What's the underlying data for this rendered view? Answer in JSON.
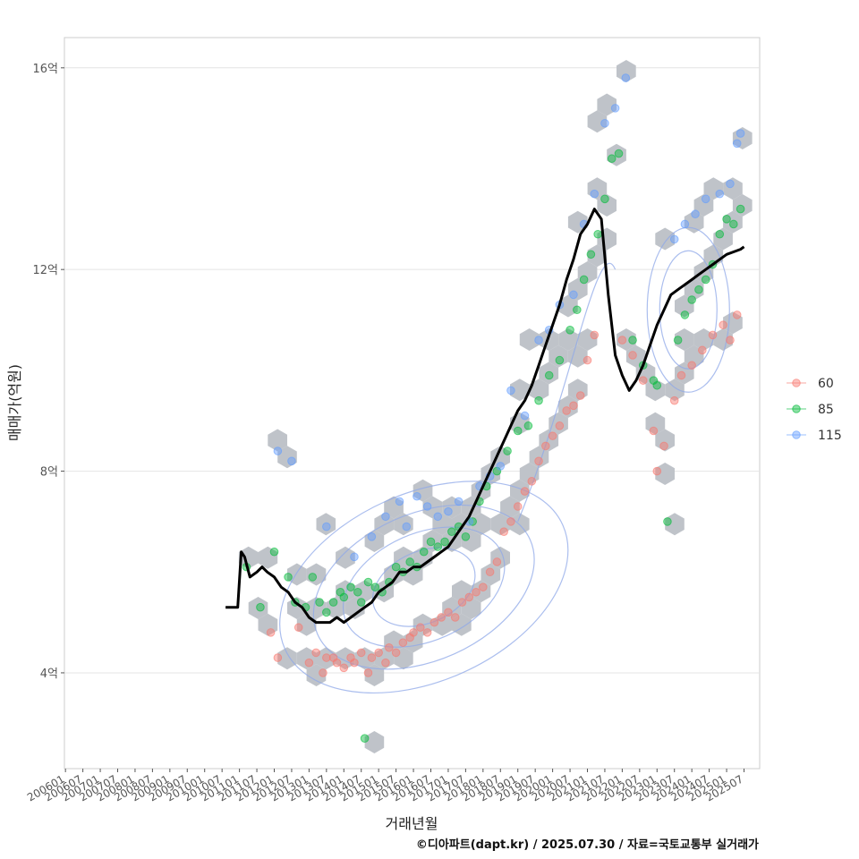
{
  "chart_data": {
    "type": "scatter",
    "title": "",
    "xlabel": "거래년월",
    "ylabel": "매매가(억원)",
    "caption": "©디아파트(dapt.kr) / 2025.07.30 / 자료=국토교통부 실거래가",
    "x_ticks": [
      "200601",
      "200607",
      "200701",
      "200707",
      "200801",
      "200807",
      "200901",
      "200907",
      "201001",
      "201007",
      "201101",
      "201107",
      "201201",
      "201207",
      "201301",
      "201307",
      "201401",
      "201407",
      "201501",
      "201507",
      "201601",
      "201607",
      "201701",
      "201707",
      "201801",
      "201807",
      "201901",
      "201907",
      "202001",
      "202007",
      "202101",
      "202107",
      "202201",
      "202207",
      "202301",
      "202307",
      "202401",
      "202407",
      "202501",
      "202507"
    ],
    "y_ticks": [
      {
        "value": 4,
        "label": "4억"
      },
      {
        "value": 8,
        "label": "8억"
      },
      {
        "value": 12,
        "label": "12억"
      },
      {
        "value": 16,
        "label": "16억"
      }
    ],
    "ylim": [
      2.1,
      16.6
    ],
    "xlim": [
      2005.97,
      2025.95
    ],
    "legend": {
      "placement": "right",
      "entries": [
        {
          "label": "60",
          "color": "#F8766D"
        },
        {
          "label": "85",
          "color": "#00BA38"
        },
        {
          "label": "115",
          "color": "#619CFF"
        }
      ]
    },
    "colors": {
      "s60": "#F8766D",
      "s85": "#00BA38",
      "s115": "#619CFF",
      "hex": "#bfc3c9",
      "trend": "#000000",
      "contour": "#8fa8e8"
    },
    "series": [
      {
        "name": "60",
        "points": [
          [
            2011.9,
            4.8
          ],
          [
            2012.1,
            4.3
          ],
          [
            2012.7,
            4.9
          ],
          [
            2013.0,
            4.2
          ],
          [
            2013.2,
            4.4
          ],
          [
            2013.4,
            4.0
          ],
          [
            2013.5,
            4.3
          ],
          [
            2013.7,
            4.3
          ],
          [
            2013.8,
            4.2
          ],
          [
            2014.0,
            4.1
          ],
          [
            2014.2,
            4.3
          ],
          [
            2014.3,
            4.2
          ],
          [
            2014.5,
            4.4
          ],
          [
            2014.7,
            4.0
          ],
          [
            2014.8,
            4.3
          ],
          [
            2015.0,
            4.4
          ],
          [
            2015.2,
            4.2
          ],
          [
            2015.3,
            4.5
          ],
          [
            2015.5,
            4.4
          ],
          [
            2015.7,
            4.6
          ],
          [
            2015.9,
            4.7
          ],
          [
            2016.0,
            4.8
          ],
          [
            2016.2,
            4.9
          ],
          [
            2016.4,
            4.8
          ],
          [
            2016.6,
            5.0
          ],
          [
            2016.8,
            5.1
          ],
          [
            2017.0,
            5.2
          ],
          [
            2017.2,
            5.1
          ],
          [
            2017.4,
            5.4
          ],
          [
            2017.6,
            5.5
          ],
          [
            2017.8,
            5.6
          ],
          [
            2018.0,
            5.7
          ],
          [
            2018.2,
            6.0
          ],
          [
            2018.4,
            6.2
          ],
          [
            2018.6,
            6.8
          ],
          [
            2018.8,
            7.0
          ],
          [
            2019.0,
            7.3
          ],
          [
            2019.2,
            7.6
          ],
          [
            2019.4,
            7.8
          ],
          [
            2019.6,
            8.2
          ],
          [
            2019.8,
            8.5
          ],
          [
            2020.0,
            8.7
          ],
          [
            2020.2,
            8.9
          ],
          [
            2020.4,
            9.2
          ],
          [
            2020.6,
            9.3
          ],
          [
            2020.8,
            9.5
          ],
          [
            2021.0,
            10.2
          ],
          [
            2021.2,
            10.7
          ],
          [
            2022.0,
            10.6
          ],
          [
            2022.3,
            10.3
          ],
          [
            2022.6,
            9.8
          ],
          [
            2022.9,
            8.8
          ],
          [
            2023.0,
            8.0
          ],
          [
            2023.2,
            8.5
          ],
          [
            2023.5,
            9.4
          ],
          [
            2023.7,
            9.9
          ],
          [
            2024.0,
            10.1
          ],
          [
            2024.3,
            10.4
          ],
          [
            2024.6,
            10.7
          ],
          [
            2024.9,
            10.9
          ],
          [
            2025.1,
            10.6
          ],
          [
            2025.3,
            11.1
          ]
        ]
      },
      {
        "name": "85",
        "points": [
          [
            2011.2,
            6.1
          ],
          [
            2011.6,
            5.3
          ],
          [
            2012.0,
            6.4
          ],
          [
            2012.4,
            5.9
          ],
          [
            2012.6,
            5.4
          ],
          [
            2012.9,
            5.3
          ],
          [
            2013.1,
            5.9
          ],
          [
            2013.3,
            5.4
          ],
          [
            2013.5,
            5.2
          ],
          [
            2013.7,
            5.4
          ],
          [
            2013.9,
            5.6
          ],
          [
            2014.0,
            5.5
          ],
          [
            2014.2,
            5.7
          ],
          [
            2014.4,
            5.6
          ],
          [
            2014.5,
            5.4
          ],
          [
            2014.6,
            2.7
          ],
          [
            2014.7,
            5.8
          ],
          [
            2014.9,
            5.7
          ],
          [
            2015.1,
            5.6
          ],
          [
            2015.3,
            5.8
          ],
          [
            2015.5,
            6.1
          ],
          [
            2015.7,
            6.0
          ],
          [
            2015.9,
            6.2
          ],
          [
            2016.1,
            6.1
          ],
          [
            2016.3,
            6.4
          ],
          [
            2016.5,
            6.6
          ],
          [
            2016.7,
            6.5
          ],
          [
            2016.9,
            6.6
          ],
          [
            2017.1,
            6.8
          ],
          [
            2017.3,
            6.9
          ],
          [
            2017.5,
            6.7
          ],
          [
            2017.7,
            7.0
          ],
          [
            2017.9,
            7.4
          ],
          [
            2018.1,
            7.7
          ],
          [
            2018.4,
            8.0
          ],
          [
            2018.7,
            8.4
          ],
          [
            2019.0,
            8.8
          ],
          [
            2019.3,
            8.9
          ],
          [
            2019.6,
            9.4
          ],
          [
            2019.9,
            9.9
          ],
          [
            2020.2,
            10.2
          ],
          [
            2020.5,
            10.8
          ],
          [
            2020.7,
            11.2
          ],
          [
            2020.9,
            11.8
          ],
          [
            2021.1,
            12.3
          ],
          [
            2021.3,
            12.7
          ],
          [
            2021.5,
            13.4
          ],
          [
            2021.7,
            14.2
          ],
          [
            2021.9,
            14.3
          ],
          [
            2022.3,
            10.6
          ],
          [
            2022.6,
            10.1
          ],
          [
            2022.9,
            9.8
          ],
          [
            2023.0,
            9.7
          ],
          [
            2023.3,
            7.0
          ],
          [
            2023.6,
            10.6
          ],
          [
            2023.8,
            11.1
          ],
          [
            2024.0,
            11.4
          ],
          [
            2024.2,
            11.6
          ],
          [
            2024.4,
            11.8
          ],
          [
            2024.6,
            12.1
          ],
          [
            2024.8,
            12.7
          ],
          [
            2025.0,
            13.0
          ],
          [
            2025.2,
            12.9
          ],
          [
            2025.4,
            13.2
          ]
        ]
      },
      {
        "name": "115",
        "points": [
          [
            2012.1,
            8.4
          ],
          [
            2012.5,
            8.2
          ],
          [
            2013.5,
            6.9
          ],
          [
            2014.3,
            6.3
          ],
          [
            2014.8,
            6.7
          ],
          [
            2015.2,
            7.1
          ],
          [
            2015.6,
            7.4
          ],
          [
            2015.8,
            6.9
          ],
          [
            2016.1,
            7.5
          ],
          [
            2016.4,
            7.3
          ],
          [
            2016.7,
            7.1
          ],
          [
            2017.0,
            7.2
          ],
          [
            2017.3,
            7.4
          ],
          [
            2017.6,
            7.0
          ],
          [
            2017.9,
            7.7
          ],
          [
            2018.2,
            7.9
          ],
          [
            2018.5,
            8.1
          ],
          [
            2018.8,
            9.6
          ],
          [
            2019.2,
            9.1
          ],
          [
            2019.6,
            10.6
          ],
          [
            2019.9,
            10.8
          ],
          [
            2020.2,
            11.3
          ],
          [
            2020.6,
            11.5
          ],
          [
            2020.9,
            12.9
          ],
          [
            2021.2,
            13.5
          ],
          [
            2021.5,
            14.9
          ],
          [
            2021.8,
            15.2
          ],
          [
            2022.1,
            15.8
          ],
          [
            2023.5,
            12.6
          ],
          [
            2023.8,
            12.9
          ],
          [
            2024.1,
            13.1
          ],
          [
            2024.4,
            13.4
          ],
          [
            2024.8,
            13.5
          ],
          [
            2025.1,
            13.7
          ],
          [
            2025.3,
            14.5
          ],
          [
            2025.4,
            14.7
          ]
        ]
      }
    ],
    "trend_line": {
      "x": [
        2010.6,
        2010.95,
        2011.05,
        2011.15,
        2011.3,
        2011.5,
        2011.65,
        2011.8,
        2012.0,
        2012.2,
        2012.4,
        2012.6,
        2012.8,
        2013.0,
        2013.2,
        2013.4,
        2013.6,
        2013.8,
        2014.0,
        2014.2,
        2014.4,
        2014.6,
        2014.8,
        2015.0,
        2015.2,
        2015.4,
        2015.6,
        2015.8,
        2016.0,
        2016.2,
        2016.4,
        2016.6,
        2016.8,
        2017.0,
        2017.2,
        2017.4,
        2017.6,
        2017.8,
        2018.0,
        2018.2,
        2018.4,
        2018.6,
        2018.8,
        2019.0,
        2019.2,
        2019.4,
        2019.6,
        2019.8,
        2020.0,
        2020.2,
        2020.4,
        2020.6,
        2020.8,
        2021.0,
        2021.2,
        2021.4,
        2021.6,
        2021.8,
        2022.0,
        2022.2,
        2022.4,
        2022.6,
        2022.8,
        2023.0,
        2023.2,
        2023.4,
        2023.6,
        2023.8,
        2024.0,
        2024.2,
        2024.4,
        2024.6,
        2024.8,
        2025.0,
        2025.2,
        2025.4,
        2025.5
      ],
      "y": [
        5.3,
        5.3,
        6.4,
        6.3,
        5.9,
        6.0,
        6.1,
        6.0,
        5.9,
        5.7,
        5.6,
        5.4,
        5.3,
        5.1,
        5.0,
        5.0,
        5.0,
        5.1,
        5.0,
        5.1,
        5.2,
        5.3,
        5.4,
        5.6,
        5.7,
        5.8,
        6.0,
        6.0,
        6.1,
        6.1,
        6.2,
        6.3,
        6.4,
        6.5,
        6.7,
        6.9,
        7.1,
        7.4,
        7.7,
        8.0,
        8.3,
        8.6,
        8.9,
        9.2,
        9.4,
        9.7,
        10.1,
        10.5,
        10.9,
        11.3,
        11.8,
        12.2,
        12.7,
        12.9,
        13.2,
        13.0,
        11.5,
        10.3,
        9.9,
        9.6,
        9.8,
        10.1,
        10.5,
        10.9,
        11.2,
        11.5,
        11.6,
        11.7,
        11.8,
        11.9,
        12.0,
        12.1,
        12.2,
        12.3,
        12.35,
        12.4,
        12.45
      ]
    }
  }
}
